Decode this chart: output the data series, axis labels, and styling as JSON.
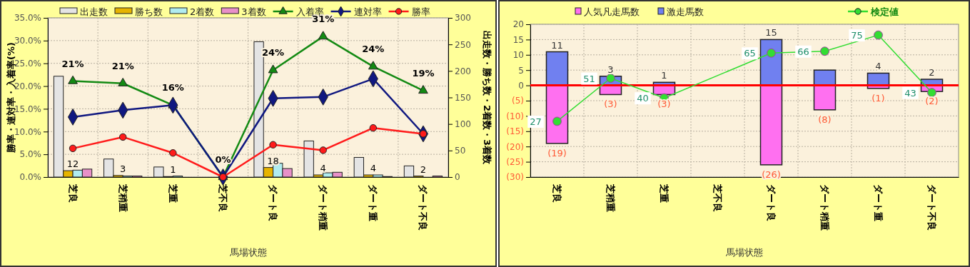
{
  "chart_data": [
    {
      "type": "bar",
      "xlabel": "馬場状態",
      "ylabel": "勝率・連対率・入着率(%)",
      "y2label": "出走数・勝ち数・2着数・3着数",
      "categories": [
        "芝良",
        "芝稍重",
        "芝重",
        "芝不良",
        "ダート良",
        "ダート稍重",
        "ダート重",
        "ダート不良"
      ],
      "ylim": [
        0,
        35
      ],
      "yticks": [
        {
          "value": 0,
          "label": "0.0%"
        },
        {
          "value": 5,
          "label": "5.0%"
        },
        {
          "value": 10,
          "label": "10.0%"
        },
        {
          "value": 15,
          "label": "15.0%"
        },
        {
          "value": 20,
          "label": "20.0%"
        },
        {
          "value": 25,
          "label": "25.0%"
        },
        {
          "value": 30,
          "label": "30.0%"
        },
        {
          "value": 35,
          "label": "35.0%"
        }
      ],
      "y2lim": [
        0,
        300
      ],
      "y2ticks": [
        0,
        50,
        100,
        150,
        200,
        250,
        300
      ],
      "grid": true,
      "legend": "top",
      "series": [
        {
          "name": "出走数",
          "axis": "y2",
          "color": "#e4e4e4",
          "values": [
            190,
            34,
            19,
            0,
            255,
            68,
            37,
            21
          ]
        },
        {
          "name": "勝ち数",
          "axis": "y2",
          "color": "#e6b400",
          "values": [
            12,
            3,
            1,
            0,
            18,
            4,
            4,
            2
          ],
          "value_labels": [
            "12",
            "3",
            "1",
            null,
            "18",
            "4",
            "4",
            "2"
          ]
        },
        {
          "name": "2着数",
          "axis": "y2",
          "color": "#b0ecf0",
          "values": [
            13,
            2,
            2,
            0,
            26,
            8,
            4,
            0
          ]
        },
        {
          "name": "3着数",
          "axis": "y2",
          "color": "#e890c8",
          "values": [
            15,
            2,
            0,
            0,
            16,
            9,
            1,
            2
          ]
        },
        {
          "name": "入着率",
          "type": "line",
          "axis": "y",
          "color": "#138a13",
          "marker": "triangle",
          "values": [
            21.1,
            20.6,
            15.8,
            0,
            23.5,
            30.9,
            24.3,
            19.0
          ],
          "value_labels": [
            "21%",
            "21%",
            "16%",
            "0%",
            "24%",
            "31%",
            "24%",
            "19%"
          ]
        },
        {
          "name": "連対率",
          "type": "line",
          "axis": "y",
          "color": "#101880",
          "marker": "diamond",
          "values": [
            13.2,
            14.7,
            15.8,
            0,
            17.3,
            17.6,
            21.6,
            9.5
          ]
        },
        {
          "name": "勝率",
          "type": "line",
          "axis": "y",
          "color": "#ff1a1a",
          "marker": "circle",
          "values": [
            6.3,
            8.8,
            5.3,
            0,
            7.1,
            5.9,
            10.8,
            9.5
          ]
        }
      ]
    },
    {
      "type": "bar",
      "xlabel": "馬場状態",
      "stacked": true,
      "categories": [
        "芝良",
        "芝稍重",
        "芝重",
        "芝不良",
        "ダート良",
        "ダート稍重",
        "ダート重",
        "ダート不良"
      ],
      "ylim": [
        -30,
        20
      ],
      "yticks": [
        {
          "value": -30,
          "label": "(30)"
        },
        {
          "value": -25,
          "label": "(25)"
        },
        {
          "value": -20,
          "label": "(20)"
        },
        {
          "value": -15,
          "label": "(15)"
        },
        {
          "value": -10,
          "label": "(10)"
        },
        {
          "value": -5,
          "label": "(5)"
        },
        0,
        5,
        10,
        15,
        20
      ],
      "y2lim": [
        -4,
        81
      ],
      "grid": true,
      "legend": "top",
      "ref_lines": [
        {
          "axis": "y",
          "value": 0,
          "color": "#ff0000"
        }
      ],
      "series": [
        {
          "name": "人気凡走馬数",
          "axis": "y",
          "color": "#ff70f0",
          "values": [
            -19,
            -3,
            -3,
            null,
            -26,
            -8,
            -1,
            -2
          ],
          "value_labels": [
            "(19)",
            "(3)",
            "(3)",
            null,
            "(26)",
            "(8)",
            "(1)",
            "(2)"
          ]
        },
        {
          "name": "激走馬数",
          "axis": "y",
          "color": "#7080f0",
          "values": [
            11,
            3,
            1,
            null,
            15,
            5,
            4,
            2
          ],
          "value_labels": [
            "11",
            "3",
            "1",
            null,
            "15",
            null,
            "4",
            "2"
          ]
        },
        {
          "name": "検定値",
          "type": "line",
          "axis": "y2",
          "color": "#33dd33",
          "marker": "circle",
          "x": [
            "芝良",
            "芝稍重",
            "芝重",
            "ダート良",
            "ダート稍重",
            "ダート重",
            "ダート不良"
          ],
          "values": [
            27,
            51,
            40,
            65,
            66,
            75,
            43
          ],
          "value_labels": [
            "27",
            "51",
            "40",
            "65",
            "66",
            "75",
            "43"
          ]
        }
      ]
    }
  ]
}
